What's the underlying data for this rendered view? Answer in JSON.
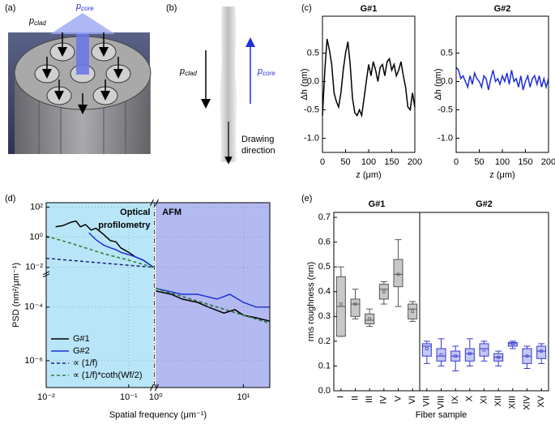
{
  "panel_labels": [
    "(a)",
    "(b)",
    "(c)",
    "(d)",
    "(e)"
  ],
  "diagram_a": {
    "p_clad": {
      "symbol": "p",
      "subscript": "clad"
    },
    "p_core": {
      "symbol": "p",
      "subscript": "core"
    }
  },
  "diagram_b": {
    "p_clad": {
      "symbol": "p",
      "subscript": "clad"
    },
    "p_core": {
      "symbol": "p",
      "subscript": "core"
    },
    "drawing_direction": [
      "Drawing",
      "direction"
    ]
  },
  "chart_data": [
    {
      "type": "line",
      "title": "G#1",
      "xlabel": "z (μm)",
      "ylabel": "Δh (nm)",
      "color": "#000000",
      "x": [
        0,
        5,
        10,
        15,
        20,
        25,
        30,
        35,
        40,
        45,
        50,
        55,
        60,
        65,
        70,
        75,
        80,
        85,
        90,
        95,
        100,
        105,
        110,
        115,
        120,
        125,
        130,
        135,
        140,
        145,
        150,
        155,
        160,
        165,
        170,
        175,
        180,
        185,
        190,
        195,
        200
      ],
      "values": [
        -0.6,
        0.2,
        0.75,
        0.55,
        0.3,
        -0.2,
        -0.35,
        -0.45,
        -0.2,
        0.2,
        0.5,
        0.7,
        0.3,
        -0.3,
        -0.55,
        -0.6,
        -0.5,
        -0.6,
        -0.3,
        0.0,
        0.3,
        0.1,
        0.35,
        0.2,
        0.0,
        0.25,
        0.3,
        0.1,
        0.35,
        0.4,
        0.2,
        0.3,
        0.1,
        0.2,
        0.35,
        0.1,
        -0.1,
        -0.45,
        -0.5,
        -0.2,
        -0.45
      ],
      "xlim": [
        0,
        200
      ],
      "xticks": [
        0,
        50,
        100,
        150,
        200
      ],
      "ylim": [
        -1.25,
        1.15
      ],
      "yticks": [
        {
          "value": -1,
          "label": "-1.0"
        },
        -0.5,
        {
          "value": 0,
          "label": "0.0"
        },
        0.5
      ]
    },
    {
      "type": "line",
      "title": "G#2",
      "xlabel": "z (μm)",
      "ylabel": "Δh (nm)",
      "color": "#1f2fd6",
      "x": [
        0,
        5,
        10,
        15,
        20,
        25,
        30,
        35,
        40,
        45,
        50,
        55,
        60,
        65,
        70,
        75,
        80,
        85,
        90,
        95,
        100,
        105,
        110,
        115,
        120,
        125,
        130,
        135,
        140,
        145,
        150,
        155,
        160,
        165,
        170,
        175,
        180,
        185,
        190,
        195,
        200
      ],
      "values": [
        0.25,
        0.2,
        0.05,
        0.1,
        0.0,
        -0.1,
        0.1,
        -0.05,
        0.15,
        0.05,
        0.0,
        -0.1,
        0.1,
        0.05,
        -0.15,
        0.05,
        0.2,
        0.0,
        0.05,
        -0.05,
        0.1,
        0.0,
        0.15,
        -0.05,
        0.2,
        0.0,
        0.05,
        -0.1,
        0.1,
        -0.15,
        0.0,
        0.1,
        -0.1,
        0.05,
        0.1,
        -0.05,
        0.1,
        -0.1,
        0.05,
        -0.1,
        0.05
      ],
      "xlim": [
        0,
        200
      ],
      "xticks": [
        0,
        50,
        100,
        150,
        200
      ],
      "ylim": [
        -1.25,
        1.15
      ],
      "yticks": [
        {
          "value": -1,
          "label": "-1.0"
        },
        -0.5,
        {
          "value": 0,
          "label": "0.0"
        },
        0.5
      ]
    },
    {
      "type": "line",
      "xlabel": "Spatial frequency (μm⁻¹)",
      "ylabel": "PSD (nm²/μm⁻¹)",
      "log_x": true,
      "log_y": true,
      "xbreak": [
        0.2,
        1
      ],
      "ybreak": [
        0.001,
        0.01
      ],
      "grid": true,
      "legend": "lower left",
      "xlim": [
        0.01,
        20
      ],
      "ylim": [
        1e-07,
        200
      ],
      "xticks": [
        {
          "value": 0.01,
          "label": "10⁻²"
        },
        {
          "value": 0.1,
          "label": "10⁻¹"
        },
        {
          "value": 1,
          "label": "10⁰"
        },
        {
          "value": 10,
          "label": "10¹"
        }
      ],
      "yticks": [
        {
          "value": 100,
          "label": "10²"
        },
        {
          "value": 1,
          "label": "10⁰"
        },
        {
          "value": 0.01,
          "label": "10⁻²"
        },
        {
          "value": 0.0001,
          "label": "10⁻⁴"
        },
        {
          "value": 1e-06,
          "label": "10⁻⁶"
        }
      ],
      "regions": [
        {
          "label": [
            "Optical",
            "profilometry"
          ],
          "color": "#b8e6f8",
          "xlim": [
            0.01,
            0.2
          ]
        },
        {
          "label": [
            "AFM"
          ],
          "color": "#b3baf2",
          "xlim": [
            1,
            20
          ]
        }
      ],
      "series": [
        {
          "name": "G#1",
          "color": "#000000",
          "dash": false,
          "x": [
            0.013,
            0.016,
            0.02,
            0.023,
            0.026,
            0.03,
            0.035,
            0.04,
            0.05,
            0.06,
            0.07,
            0.08,
            0.1,
            0.12,
            0.15,
            0.2,
            0.5,
            1,
            1.5,
            2,
            3,
            4,
            6,
            8,
            10,
            14,
            20
          ],
          "values": [
            5,
            6,
            10,
            12,
            5,
            7,
            3,
            4,
            1.5,
            0.6,
            0.5,
            0.2,
            0.1,
            0.05,
            0.03,
            0.01,
            null,
            0.0004,
            0.0003,
            0.0002,
            0.00015,
            0.0001,
            6e-05,
            8e-05,
            5e-05,
            4e-05,
            3e-05
          ]
        },
        {
          "name": "G#2",
          "color": "#1f2fd6",
          "dash": false,
          "x": [
            0.033,
            0.04,
            0.05,
            0.06,
            0.07,
            0.08,
            0.1,
            0.12,
            0.15,
            0.2,
            0.5,
            1,
            2,
            3,
            5,
            7,
            10,
            14,
            20
          ],
          "values": [
            2,
            0.7,
            0.3,
            0.2,
            0.15,
            0.1,
            0.07,
            0.05,
            0.03,
            0.01,
            null,
            0.0005,
            0.0003,
            0.0003,
            0.0002,
            0.0003,
            0.00015,
            0.0001,
            0.0001
          ]
        },
        {
          "name": "∝ (1/f)",
          "color": "#1a237e",
          "dash": true,
          "x": [
            0.01,
            0.2,
            0.5,
            1,
            20
          ],
          "values": [
            0.04,
            0.01,
            null,
            0.0005,
            2.5e-05
          ]
        },
        {
          "name": "∝ (1/f)*coth(Wf/2)",
          "color": "#2e7d32",
          "dash": true,
          "x": [
            0.01,
            0.02,
            0.05,
            0.1,
            0.2,
            0.5,
            1,
            20
          ],
          "values": [
            1.2,
            0.4,
            0.08,
            0.03,
            0.01,
            null,
            0.0005,
            2.5e-05
          ]
        }
      ]
    },
    {
      "type": "box",
      "xlabel": "Fiber sample",
      "ylabel": "rms roughness (nm)",
      "ylim": [
        0,
        0.72
      ],
      "yticks": [
        {
          "value": 0,
          "label": "0.0"
        },
        0.1,
        0.2,
        0.3,
        0.4,
        0.5,
        0.6,
        0.7
      ],
      "series": [
        {
          "name": "G#1",
          "color": "#c8c8c8",
          "edge": "#555555",
          "categories": [
            "I",
            "II",
            "III",
            "IV",
            "V",
            "VI"
          ],
          "min": [
            0.22,
            0.29,
            0.26,
            0.35,
            0.34,
            0.28
          ],
          "q1": [
            0.22,
            0.3,
            0.27,
            0.37,
            0.42,
            0.29
          ],
          "median": [
            0.34,
            0.35,
            0.285,
            0.41,
            0.47,
            0.33
          ],
          "q3": [
            0.46,
            0.37,
            0.31,
            0.43,
            0.53,
            0.35
          ],
          "max": [
            0.5,
            0.41,
            0.33,
            0.44,
            0.61,
            0.36
          ],
          "mean": [
            0.35,
            0.35,
            0.29,
            0.4,
            0.47,
            0.32
          ]
        },
        {
          "name": "G#2",
          "color": "#c4c8f5",
          "edge": "#3a3acc",
          "categories": [
            "VII",
            "VIII",
            "IX",
            "X",
            "XI",
            "XII",
            "XIII",
            "XIV",
            "XV"
          ],
          "min": [
            0.11,
            0.1,
            0.08,
            0.1,
            0.12,
            0.1,
            0.17,
            0.09,
            0.11
          ],
          "q1": [
            0.14,
            0.12,
            0.12,
            0.12,
            0.14,
            0.12,
            0.18,
            0.11,
            0.13
          ],
          "median": [
            0.18,
            0.14,
            0.14,
            0.15,
            0.17,
            0.135,
            0.19,
            0.14,
            0.16
          ],
          "q3": [
            0.19,
            0.17,
            0.16,
            0.17,
            0.19,
            0.15,
            0.195,
            0.17,
            0.18
          ],
          "max": [
            0.2,
            0.21,
            0.18,
            0.21,
            0.2,
            0.16,
            0.2,
            0.18,
            0.19
          ],
          "mean": [
            0.17,
            0.145,
            0.14,
            0.15,
            0.165,
            0.135,
            0.19,
            0.14,
            0.16
          ]
        }
      ]
    }
  ]
}
